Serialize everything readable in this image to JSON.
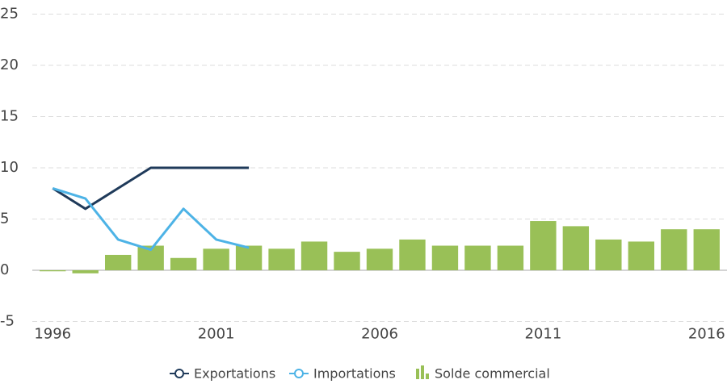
{
  "chart_data": {
    "type": "bar",
    "categories": [
      "1996",
      null,
      null,
      null,
      null,
      "2001",
      null,
      null,
      null,
      null,
      "2006",
      null,
      null,
      null,
      null,
      "2011",
      null,
      null,
      null,
      null,
      "2016"
    ],
    "series": [
      {
        "name": "Exportations",
        "type": "line",
        "color": "#1f3a5a",
        "values": [
          8,
          6,
          8,
          10,
          10,
          10,
          10,
          null,
          null,
          null,
          null,
          null,
          null,
          null,
          null,
          null,
          null,
          null,
          null,
          null,
          null
        ]
      },
      {
        "name": "Importations",
        "type": "line",
        "color": "#4db3e6",
        "values": [
          8,
          7,
          3,
          2,
          6,
          3,
          2.2,
          null,
          null,
          null,
          null,
          null,
          null,
          null,
          null,
          null,
          null,
          null,
          null,
          null,
          null
        ]
      },
      {
        "name": "Solde commercial",
        "type": "bar",
        "color": "#99c057",
        "values": [
          -0.1,
          -0.3,
          1.5,
          2.4,
          1.2,
          2.1,
          2.4,
          2.1,
          2.8,
          1.8,
          2.1,
          3.0,
          2.4,
          2.4,
          2.4,
          4.8,
          4.3,
          3.0,
          2.8,
          4.0,
          4.0
        ]
      }
    ],
    "ylim": [
      -5,
      25
    ],
    "yticks": [
      -5,
      0,
      5,
      10,
      15,
      20,
      25
    ],
    "grid": true,
    "legend": "bottom"
  }
}
